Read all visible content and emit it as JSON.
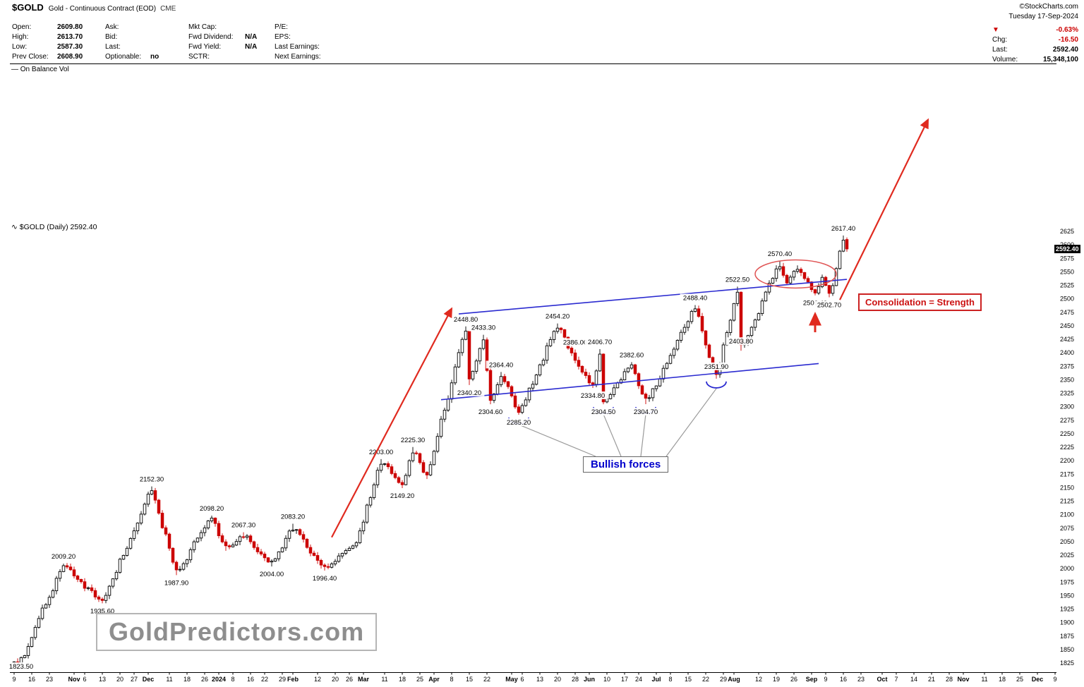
{
  "header": {
    "symbol": "$GOLD",
    "title": "Gold - Continuous Contract (EOD)",
    "exchange": "CME",
    "source": "©StockCharts.com",
    "date": "Tuesday 17-Sep-2024",
    "quote_columns": [
      {
        "rows": [
          [
            "Open:",
            "2609.80"
          ],
          [
            "High:",
            "2613.70"
          ],
          [
            "Low:",
            "2587.30"
          ],
          [
            "Prev Close:",
            "2608.90"
          ]
        ]
      },
      {
        "rows": [
          [
            "Ask:",
            ""
          ],
          [
            "Bid:",
            ""
          ],
          [
            "Last:",
            ""
          ],
          [
            "Optionable:",
            "no"
          ]
        ]
      },
      {
        "rows": [
          [
            "Mkt Cap:",
            ""
          ],
          [
            "Fwd Dividend:",
            "N/A"
          ],
          [
            "Fwd Yield:",
            "N/A"
          ],
          [
            "SCTR:",
            ""
          ]
        ]
      },
      {
        "rows": [
          [
            "P/E:",
            ""
          ],
          [
            "EPS:",
            ""
          ],
          [
            "Last Earnings:",
            ""
          ],
          [
            "Next Earnings:",
            ""
          ]
        ]
      }
    ],
    "right": {
      "direction_icon": "▼",
      "pct_change": "-0.63%",
      "rows": [
        {
          "label": "Chg:",
          "value": "-16.50",
          "negative": true
        },
        {
          "label": "Last:",
          "value": "2592.40",
          "negative": false
        },
        {
          "label": "Volume:",
          "value": "15,348,100",
          "negative": false
        }
      ]
    }
  },
  "obv_pane": {
    "legend": "— On Balance Vol"
  },
  "main_pane": {
    "legend_icon": "∿",
    "legend": "$GOLD (Daily) 2592.40",
    "price_badge": "2592.40"
  },
  "annotations": {
    "bullish_label": "Bullish forces",
    "consolidation_label": "Consolidation = Strength",
    "watermark": "GoldPredictors.com"
  },
  "chart_data": {
    "type": "candlestick",
    "symbol": "$GOLD",
    "timeframe": "Daily",
    "last_price": 2592.4,
    "ylim": [
      1825,
      2625
    ],
    "y_tick_step": 25,
    "x_ticks": [
      [
        "9",
        0,
        false
      ],
      [
        "16",
        5,
        false
      ],
      [
        "23",
        10,
        false
      ],
      [
        "Nov",
        17,
        true
      ],
      [
        "6",
        20,
        false
      ],
      [
        "13",
        25,
        false
      ],
      [
        "20",
        30,
        false
      ],
      [
        "27",
        34,
        false
      ],
      [
        "Dec",
        38,
        true
      ],
      [
        "11",
        44,
        false
      ],
      [
        "18",
        49,
        false
      ],
      [
        "26",
        54,
        false
      ],
      [
        "2024",
        58,
        true
      ],
      [
        "8",
        62,
        false
      ],
      [
        "16",
        67,
        false
      ],
      [
        "22",
        71,
        false
      ],
      [
        "29",
        76,
        false
      ],
      [
        "Feb",
        79,
        true
      ],
      [
        "12",
        86,
        false
      ],
      [
        "20",
        91,
        false
      ],
      [
        "26",
        95,
        false
      ],
      [
        "Mar",
        99,
        true
      ],
      [
        "11",
        105,
        false
      ],
      [
        "18",
        110,
        false
      ],
      [
        "25",
        115,
        false
      ],
      [
        "Apr",
        119,
        true
      ],
      [
        "8",
        124,
        false
      ],
      [
        "15",
        129,
        false
      ],
      [
        "22",
        134,
        false
      ],
      [
        "May",
        141,
        true
      ],
      [
        "6",
        144,
        false
      ],
      [
        "13",
        149,
        false
      ],
      [
        "20",
        154,
        false
      ],
      [
        "28",
        159,
        false
      ],
      [
        "Jun",
        163,
        true
      ],
      [
        "10",
        168,
        false
      ],
      [
        "17",
        173,
        false
      ],
      [
        "24",
        177,
        false
      ],
      [
        "Jul",
        182,
        true
      ],
      [
        "8",
        186,
        false
      ],
      [
        "15",
        191,
        false
      ],
      [
        "22",
        196,
        false
      ],
      [
        "29",
        201,
        false
      ],
      [
        "Aug",
        204,
        true
      ],
      [
        "12",
        211,
        false
      ],
      [
        "19",
        216,
        false
      ],
      [
        "26",
        221,
        false
      ],
      [
        "Sep",
        226,
        true
      ],
      [
        "9",
        230,
        false
      ],
      [
        "16",
        235,
        false
      ],
      [
        "23",
        240,
        false
      ],
      [
        "Oct",
        246,
        true
      ],
      [
        "7",
        250,
        false
      ],
      [
        "14",
        255,
        false
      ],
      [
        "21",
        260,
        false
      ],
      [
        "28",
        265,
        false
      ],
      [
        "Nov",
        269,
        true
      ],
      [
        "11",
        275,
        false
      ],
      [
        "18",
        280,
        false
      ],
      [
        "25",
        285,
        false
      ],
      [
        "Dec",
        290,
        true
      ],
      [
        "9",
        295,
        false
      ]
    ],
    "pivots": [
      [
        0,
        1827
      ],
      [
        2,
        1823.5
      ],
      [
        14,
        2009.2
      ],
      [
        25,
        1935.6
      ],
      [
        39,
        2152.3
      ],
      [
        46,
        1987.9
      ],
      [
        56,
        2098.2
      ],
      [
        60,
        2033
      ],
      [
        65,
        2067.3
      ],
      [
        73,
        2004.0
      ],
      [
        79,
        2083.2
      ],
      [
        88,
        1996.4
      ],
      [
        97,
        2048
      ],
      [
        104,
        2203.0
      ],
      [
        110,
        2149.2
      ],
      [
        113,
        2225.3
      ],
      [
        117,
        2166
      ],
      [
        128,
        2448.8
      ],
      [
        129,
        2340.2
      ],
      [
        133,
        2433.3
      ],
      [
        135,
        2304.6
      ],
      [
        138,
        2364.4
      ],
      [
        143,
        2285.2
      ],
      [
        154,
        2454.2
      ],
      [
        159,
        2386.0
      ],
      [
        164,
        2334.8
      ],
      [
        166,
        2406.7
      ],
      [
        167,
        2304.5
      ],
      [
        175,
        2382.6
      ],
      [
        179,
        2304.7
      ],
      [
        186,
        2395
      ],
      [
        193,
        2488.4
      ],
      [
        199,
        2351.9
      ],
      [
        205,
        2522.5
      ],
      [
        206,
        2403.8
      ],
      [
        217,
        2570.4
      ],
      [
        219,
        2526
      ],
      [
        222,
        2562
      ],
      [
        227,
        2506.4
      ],
      [
        229,
        2545
      ],
      [
        231,
        2502.7
      ],
      [
        233,
        2556
      ],
      [
        235,
        2617.4
      ]
    ],
    "last_candle": {
      "day": 236,
      "open": 2609.8,
      "high": 2613.7,
      "low": 2587.3,
      "close": 2592.4
    },
    "price_labels": [
      {
        "t": "1823.50",
        "d": 2,
        "pos": "below"
      },
      {
        "t": "2009.20",
        "d": 14,
        "pos": "above"
      },
      {
        "t": "1935.60",
        "d": 25,
        "pos": "below"
      },
      {
        "t": "2152.30",
        "d": 39,
        "pos": "above"
      },
      {
        "t": "1987.90",
        "d": 46,
        "pos": "below"
      },
      {
        "t": "2098.20",
        "d": 56,
        "pos": "above"
      },
      {
        "t": "2067.30",
        "d": 65,
        "pos": "above"
      },
      {
        "t": "2004.00",
        "d": 73,
        "pos": "below"
      },
      {
        "t": "2083.20",
        "d": 79,
        "pos": "above"
      },
      {
        "t": "1996.40",
        "d": 88,
        "pos": "below"
      },
      {
        "t": "2203.00",
        "d": 104,
        "pos": "above"
      },
      {
        "t": "2149.20",
        "d": 110,
        "pos": "below"
      },
      {
        "t": "2225.30",
        "d": 113,
        "pos": "above"
      },
      {
        "t": "2448.80",
        "d": 128,
        "pos": "above"
      },
      {
        "t": "2340.20",
        "d": 129,
        "pos": "below"
      },
      {
        "t": "2433.30",
        "d": 133,
        "pos": "above"
      },
      {
        "t": "2304.60",
        "d": 135,
        "pos": "below"
      },
      {
        "t": "2364.40",
        "d": 138,
        "pos": "above"
      },
      {
        "t": "2285.20",
        "d": 143,
        "pos": "below"
      },
      {
        "t": "2454.20",
        "d": 154,
        "pos": "above"
      },
      {
        "t": "2386.00",
        "d": 159,
        "pos": "above"
      },
      {
        "t": "2334.80",
        "d": 164,
        "pos": "below"
      },
      {
        "t": "2406.70",
        "d": 166,
        "pos": "above"
      },
      {
        "t": "2304.50",
        "d": 167,
        "pos": "below"
      },
      {
        "t": "2382.60",
        "d": 175,
        "pos": "above"
      },
      {
        "t": "2304.70",
        "d": 179,
        "pos": "below"
      },
      {
        "t": "2488.40",
        "d": 193,
        "pos": "above"
      },
      {
        "t": "2351.90",
        "d": 199,
        "pos": "at",
        "price": 2351.9,
        "dy": -14
      },
      {
        "t": "2522.50",
        "d": 205,
        "pos": "above"
      },
      {
        "t": "2403.80",
        "d": 206,
        "pos": "at",
        "price": 2403.8,
        "dy": -10
      },
      {
        "t": "2570.40",
        "d": 217,
        "pos": "above"
      },
      {
        "t": "2506.40",
        "d": 227,
        "pos": "below"
      },
      {
        "t": "2502.70",
        "d": 231,
        "pos": "below"
      },
      {
        "t": "2617.40",
        "d": 235,
        "pos": "above"
      }
    ],
    "channel_lines": [
      {
        "from": [
          126,
          2472
        ],
        "to": [
          236,
          2536
        ]
      },
      {
        "from": [
          121,
          2313
        ],
        "to": [
          228,
          2380
        ]
      }
    ],
    "cups": [
      [
        143,
        2285.2
      ],
      [
        167,
        2304.5
      ],
      [
        179,
        2304.7
      ],
      [
        199,
        2351.9
      ]
    ],
    "trend_arrows": [
      {
        "from": [
          90,
          2058
        ],
        "to": [
          124,
          2482
        ]
      },
      {
        "from": [
          234,
          2498
        ],
        "to": [
          259,
          2832
        ]
      }
    ],
    "up_arrow": {
      "day": 227,
      "from_price": 2438,
      "to_price": 2472
    },
    "ellipse": {
      "day": 221.5,
      "price": 2546,
      "rx_days": 11.5,
      "ry_points": 26
    },
    "colors": {
      "up": "#000000",
      "down": "#cc0000",
      "channel": "#2b2bd0",
      "arrow": "#e02a1f",
      "ellipse": "#e05555",
      "pointer": "#9a9a9a"
    }
  }
}
